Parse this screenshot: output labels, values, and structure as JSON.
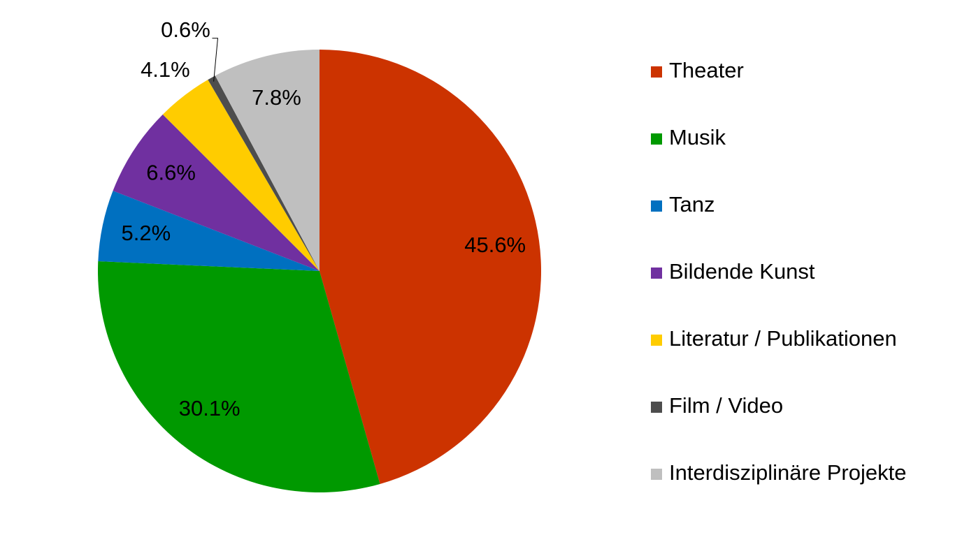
{
  "chart_data": {
    "type": "pie",
    "categories": [
      "Theater",
      "Musik",
      "Tanz",
      "Bildende Kunst",
      "Literatur / Publikationen",
      "Film / Video",
      "Interdisziplinäre Projekte"
    ],
    "values": [
      45.6,
      30.1,
      5.2,
      6.6,
      4.1,
      0.6,
      7.8
    ],
    "value_labels": [
      "45.6%",
      "30.1%",
      "5.2%",
      "6.6%",
      "4.1%",
      "0.6%",
      "7.8%"
    ],
    "colors": [
      "#cc3300",
      "#009900",
      "#0070c0",
      "#7030a0",
      "#ffcc00",
      "#4d4d4d",
      "#bfbfbf"
    ],
    "legend": "right"
  }
}
